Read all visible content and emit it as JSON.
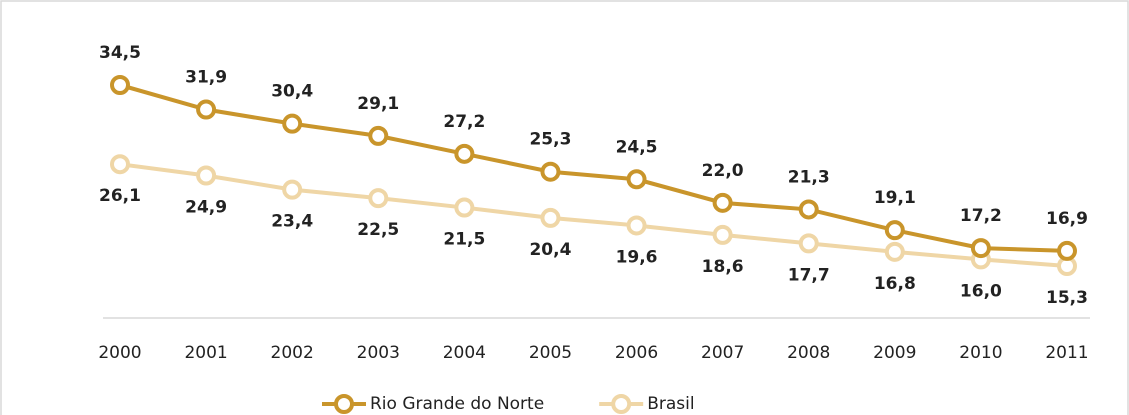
{
  "chart_data": {
    "type": "line",
    "categories": [
      "2000",
      "2001",
      "2002",
      "2003",
      "2004",
      "2005",
      "2006",
      "2007",
      "2008",
      "2009",
      "2010",
      "2011"
    ],
    "series": [
      {
        "name": "Rio Grande do Norte",
        "color": "#c9952b",
        "values": [
          34.5,
          31.9,
          30.4,
          29.1,
          27.2,
          25.3,
          24.5,
          22.0,
          21.3,
          19.1,
          17.2,
          16.9
        ],
        "value_labels": [
          "34,5",
          "31,9",
          "30,4",
          "29,1",
          "27,2",
          "25,3",
          "24,5",
          "22,0",
          "21,3",
          "19,1",
          "17,2",
          "16,9"
        ]
      },
      {
        "name": "Brasil",
        "color": "#efd6a6",
        "values": [
          26.1,
          24.9,
          23.4,
          22.5,
          21.5,
          20.4,
          19.6,
          18.6,
          17.7,
          16.8,
          16.0,
          15.3
        ],
        "value_labels": [
          "26,1",
          "24,9",
          "23,4",
          "22,5",
          "21,5",
          "20,4",
          "19,6",
          "18,6",
          "17,7",
          "16,8",
          "16,0",
          "15,3"
        ]
      }
    ]
  }
}
